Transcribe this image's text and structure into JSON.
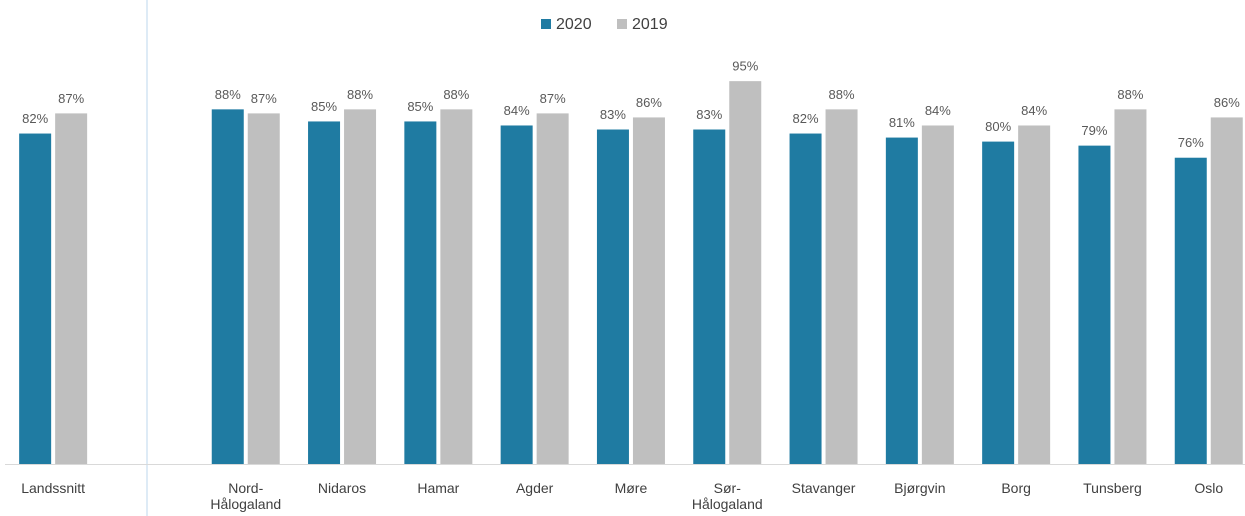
{
  "chart_data": {
    "type": "bar",
    "categories": [
      "Landssnitt",
      "Nord-Hålogaland",
      "Nidaros",
      "Hamar",
      "Agder",
      "Møre",
      "Sør-Hålogaland",
      "Stavanger",
      "Bjørgvin",
      "Borg",
      "Tunsberg",
      "Oslo"
    ],
    "series": [
      {
        "name": "2020",
        "color": "#1f7ba2",
        "values": [
          82,
          88,
          85,
          85,
          84,
          83,
          83,
          82,
          81,
          80,
          79,
          76
        ],
        "value_labels": [
          "82%",
          "88%",
          "85%",
          "85%",
          "84%",
          "83%",
          "83%",
          "82%",
          "81%",
          "80%",
          "79%",
          "76%"
        ]
      },
      {
        "name": "2019",
        "color": "#bfbfbf",
        "values": [
          87,
          87,
          88,
          88,
          87,
          86,
          95,
          88,
          84,
          84,
          88,
          86
        ],
        "value_labels": [
          "87%",
          "87%",
          "88%",
          "88%",
          "87%",
          "86%",
          "95%",
          "88%",
          "84%",
          "84%",
          "88%",
          "86%"
        ]
      }
    ],
    "ylim": [
      0,
      100
    ],
    "legend": "top"
  }
}
